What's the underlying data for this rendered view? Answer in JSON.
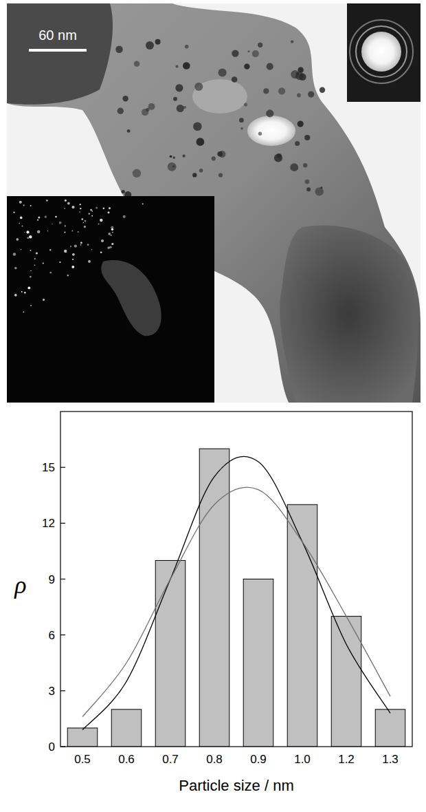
{
  "micrograph": {
    "scale_bar": "60 nm"
  },
  "chart_data": {
    "type": "bar",
    "x_label": "Particle size / nm",
    "y_label": "ρ",
    "categories": [
      "0.5",
      "0.6",
      "0.7",
      "0.8",
      "0.9",
      "1.0",
      "1.2",
      "1.3"
    ],
    "series": [
      {
        "type": "bar",
        "color": "#c0c0c0",
        "values": [
          1,
          2,
          10,
          16,
          9,
          13,
          7,
          2
        ]
      },
      {
        "type": "line",
        "color": "#000000",
        "values": [
          0.9,
          3.5,
          9,
          14.5,
          15.3,
          11,
          5.5,
          1.8
        ]
      },
      {
        "type": "line",
        "color": "#707070",
        "values": [
          1.6,
          4.5,
          9,
          13,
          13.8,
          11,
          7,
          2.7
        ]
      }
    ],
    "ylim": [
      0,
      18
    ],
    "yticks": [
      0,
      3,
      6,
      9,
      12,
      15
    ],
    "grid": false
  }
}
